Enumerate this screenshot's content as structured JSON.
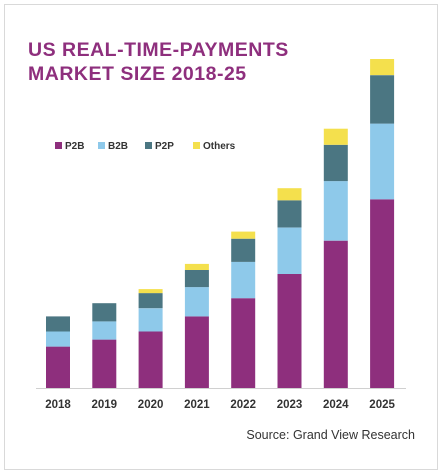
{
  "chart_data": {
    "type": "bar",
    "stacked": true,
    "title_lines": [
      "US REAL-TIME-PAYMENTS",
      "MARKET SIZE 2018-25"
    ],
    "source": "Source: Grand View Research",
    "categories": [
      "2018",
      "2019",
      "2020",
      "2021",
      "2022",
      "2023",
      "2024",
      "2025"
    ],
    "series": [
      {
        "name": "P2B",
        "color": "#8e2f7d",
        "values": [
          41,
          48,
          56,
          71,
          89,
          113,
          146,
          187
        ]
      },
      {
        "name": "B2B",
        "color": "#8ec9ea",
        "values": [
          15,
          18,
          23,
          29,
          36,
          46,
          59,
          75
        ]
      },
      {
        "name": "P2P",
        "color": "#4b7682",
        "values": [
          15,
          18,
          15,
          17,
          23,
          27,
          36,
          48
        ]
      },
      {
        "name": "Others",
        "color": "#f4e04d",
        "values": [
          0,
          0,
          4,
          6,
          7,
          12,
          16,
          16
        ]
      }
    ],
    "legend_position": "top-left",
    "grid": false,
    "y_axis_visible": false,
    "ylim": [
      0,
      330
    ]
  }
}
